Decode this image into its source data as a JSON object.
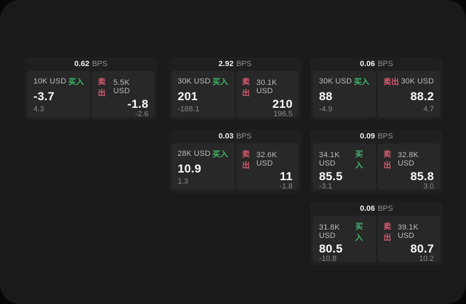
{
  "colors": {
    "buy_accent": "#42b46e",
    "sell_accent": "#d65a6e",
    "surface": "#1a1a1a",
    "card": "#1f1f1f",
    "panel": "#282828"
  },
  "labels": {
    "bps_unit": "BPS",
    "buy": "买入",
    "sell": "卖出"
  },
  "cards": [
    {
      "bps": "0.62",
      "buy": {
        "size": "10K USD",
        "price": "-3.7",
        "delta": "4.3"
      },
      "sell": {
        "size": "5.5K USD",
        "price": "-1.8",
        "delta": "-2.6"
      }
    },
    {
      "bps": "2.92",
      "buy": {
        "size": "30K USD",
        "price": "201",
        "delta": "-188.1"
      },
      "sell": {
        "size": "30.1K USD",
        "price": "210",
        "delta": "196.5"
      }
    },
    {
      "bps": "0.06",
      "buy": {
        "size": "30K USD",
        "price": "88",
        "delta": "-4.9"
      },
      "sell": {
        "size": "30K USD",
        "price": "88.2",
        "delta": "4.7"
      }
    },
    {
      "bps": "0.03",
      "buy": {
        "size": "28K USD",
        "price": "10.9",
        "delta": "1.3"
      },
      "sell": {
        "size": "32.6K USD",
        "price": "11",
        "delta": "-1.8"
      }
    },
    {
      "bps": "0.09",
      "buy": {
        "size": "34.1K USD",
        "price": "85.5",
        "delta": "-3.1"
      },
      "sell": {
        "size": "32.8K USD",
        "price": "85.8",
        "delta": "3.0"
      }
    },
    {
      "bps": "0.06",
      "buy": {
        "size": "31.8K USD",
        "price": "80.5",
        "delta": "-10.8"
      },
      "sell": {
        "size": "39.1K USD",
        "price": "80.7",
        "delta": "10.2"
      }
    }
  ]
}
